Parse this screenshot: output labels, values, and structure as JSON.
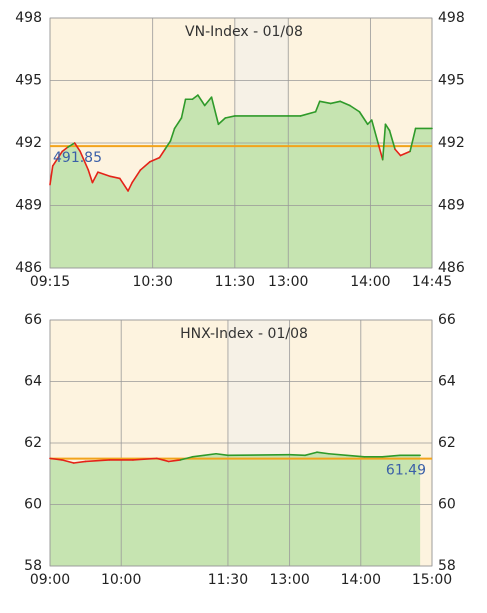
{
  "chart_data": [
    {
      "type": "line",
      "title": "VN-Index - 01/08",
      "x": [
        0,
        2,
        5,
        9,
        13,
        18,
        22,
        28,
        31,
        35,
        44,
        51,
        57,
        60,
        66,
        73,
        80,
        84,
        88,
        91,
        96,
        99,
        104,
        108,
        113,
        118,
        123,
        128,
        135,
        174,
        183,
        194,
        197,
        205,
        212,
        219,
        226,
        232,
        235,
        240,
        243,
        245,
        248,
        252,
        256,
        263,
        267,
        279
      ],
      "values": [
        490.0,
        490.9,
        491.2,
        491.6,
        491.8,
        492.0,
        491.6,
        490.7,
        490.1,
        490.6,
        490.4,
        490.3,
        489.7,
        490.1,
        490.7,
        491.1,
        491.3,
        491.7,
        492.1,
        492.7,
        493.2,
        494.1,
        494.1,
        494.3,
        493.8,
        494.2,
        492.9,
        493.2,
        493.3,
        493.3,
        493.3,
        493.5,
        494.0,
        493.9,
        494.0,
        493.8,
        493.5,
        492.9,
        493.1,
        491.9,
        491.2,
        492.9,
        492.6,
        491.7,
        491.4,
        491.6,
        492.7,
        492.7
      ],
      "reference": 491.85,
      "reference_label_side": "left",
      "ylim": [
        486,
        498
      ],
      "yticks": [
        486,
        489,
        492,
        495,
        498
      ],
      "xlim": [
        0,
        279
      ],
      "xticks": [
        {
          "value": 0,
          "label": "09:15"
        },
        {
          "value": 75,
          "label": "10:30"
        },
        {
          "value": 135,
          "label": "11:30"
        },
        {
          "value": 174,
          "label": "13:00"
        },
        {
          "value": 234,
          "label": "14:00"
        },
        {
          "value": 279,
          "label": "14:45"
        }
      ],
      "color_up": "#2f9a2a",
      "color_down": "#e42318",
      "fill_color": "#c6e4b1",
      "reference_color": "#f2a31b",
      "grid": true
    },
    {
      "type": "line",
      "title": "HNX-Index - 01/08",
      "x": [
        0,
        10,
        20,
        30,
        50,
        70,
        90,
        100,
        110,
        120,
        130,
        140,
        150,
        202,
        215,
        225,
        235,
        250,
        265,
        280,
        295,
        312
      ],
      "values": [
        61.5,
        61.45,
        61.35,
        61.4,
        61.45,
        61.45,
        61.5,
        61.4,
        61.45,
        61.55,
        61.6,
        61.65,
        61.6,
        61.62,
        61.6,
        61.7,
        61.65,
        61.6,
        61.55,
        61.55,
        61.6,
        61.6
      ],
      "reference": 61.49,
      "reference_label_side": "right",
      "ylim": [
        58,
        66
      ],
      "yticks": [
        58,
        60,
        62,
        64,
        66
      ],
      "xlim": [
        0,
        322
      ],
      "xticks": [
        {
          "value": 0,
          "label": "09:00"
        },
        {
          "value": 60,
          "label": "10:00"
        },
        {
          "value": 150,
          "label": "11:30"
        },
        {
          "value": 202,
          "label": "13:00"
        },
        {
          "value": 262,
          "label": "14:00"
        },
        {
          "value": 322,
          "label": "15:00"
        }
      ],
      "color_up": "#2f9a2a",
      "color_down": "#e42318",
      "fill_color": "#c6e4b1",
      "reference_color": "#f2a31b",
      "grid": true
    }
  ]
}
